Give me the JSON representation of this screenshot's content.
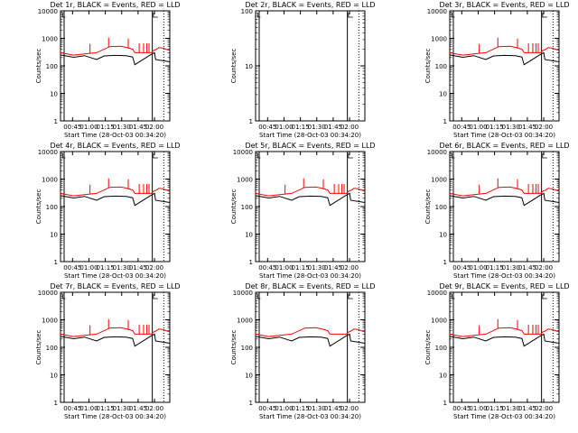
{
  "figure": {
    "title_template": "Det {det}, BLACK = Events, RED = LLD",
    "ylabel": "Counts/sec",
    "xlabel": "Start Time (28-Oct-03 00:34:20)",
    "x_ticks": [
      "00:45",
      "01:00",
      "01:15",
      "01:30",
      "01:45",
      "02:00"
    ],
    "y_ticks": [
      "1",
      "10",
      "100",
      "1000",
      "10000"
    ],
    "colors": {
      "events": "#000000",
      "lld": "#ff0000",
      "axes": "#000000"
    }
  },
  "chart_data": [
    {
      "type": "line",
      "panel": 1,
      "title": "Det 1r, BLACK = Events, RED = LLD",
      "xlabel": "Start Time (28-Oct-03 00:34:20)",
      "ylabel": "Counts/sec",
      "x_unit": "minutes since 00:34:20",
      "xlim": [
        0,
        100
      ],
      "ylim": [
        1,
        10000
      ],
      "yscale": "log",
      "has_data": true,
      "spikes": true,
      "series": [
        {
          "name": "Events",
          "color": "#000000",
          "x": [
            0,
            12,
            12,
            22,
            33,
            33,
            40,
            50,
            60,
            66,
            68,
            68,
            83,
            83,
            86,
            87,
            100
          ],
          "y": [
            250,
            205,
            205,
            235,
            170,
            170,
            230,
            240,
            235,
            210,
            110,
            110,
            260,
            260,
            300,
            170,
            140
          ]
        },
        {
          "name": "LLD",
          "color": "#ff0000",
          "x": [
            0,
            12,
            12,
            22,
            33,
            33,
            45,
            55,
            60,
            66,
            68,
            68,
            83,
            83,
            86,
            87,
            90,
            94,
            100
          ],
          "y": [
            300,
            245,
            245,
            270,
            300,
            300,
            500,
            520,
            470,
            400,
            300,
            300,
            300,
            300,
            380,
            380,
            460,
            440,
            360
          ]
        }
      ]
    },
    {
      "type": "line",
      "panel": 2,
      "title": "Det 2r, BLACK = Events, RED = LLD",
      "xlabel": "Start Time (28-Oct-03 00:34:20)",
      "ylabel": "Counts/sec",
      "x_unit": "minutes since 00:34:20",
      "xlim": [
        0,
        100
      ],
      "ylim": [
        1,
        100
      ],
      "yscale": "log",
      "has_data": false,
      "spikes": false,
      "series": []
    },
    {
      "type": "line",
      "panel": 3,
      "title": "Det 3r, BLACK = Events, RED = LLD",
      "xlabel": "Start Time (28-Oct-03 00:34:20)",
      "ylabel": "Counts/sec",
      "x_unit": "minutes since 00:34:20",
      "xlim": [
        0,
        100
      ],
      "ylim": [
        1,
        10000
      ],
      "yscale": "log",
      "has_data": true,
      "spikes": true,
      "series": [
        {
          "name": "Events",
          "color": "#000000",
          "x": [
            0,
            12,
            12,
            22,
            33,
            33,
            40,
            50,
            60,
            66,
            68,
            68,
            83,
            83,
            86,
            87,
            100
          ],
          "y": [
            250,
            205,
            205,
            235,
            170,
            170,
            230,
            240,
            235,
            210,
            110,
            110,
            260,
            260,
            300,
            170,
            140
          ]
        },
        {
          "name": "LLD",
          "color": "#ff0000",
          "x": [
            0,
            12,
            12,
            22,
            33,
            33,
            45,
            55,
            60,
            66,
            68,
            68,
            83,
            83,
            86,
            87,
            90,
            94,
            100
          ],
          "y": [
            300,
            245,
            245,
            270,
            300,
            300,
            500,
            520,
            470,
            400,
            300,
            300,
            300,
            300,
            380,
            380,
            460,
            440,
            360
          ]
        }
      ]
    },
    {
      "type": "line",
      "panel": 4,
      "title": "Det 4r, BLACK = Events, RED = LLD",
      "xlabel": "Start Time (28-Oct-03 00:34:20)",
      "ylabel": "Counts/sec",
      "x_unit": "minutes since 00:34:20",
      "xlim": [
        0,
        100
      ],
      "ylim": [
        1,
        10000
      ],
      "yscale": "log",
      "has_data": true,
      "spikes": true,
      "series": [
        {
          "name": "Events",
          "color": "#000000",
          "x": [
            0,
            12,
            12,
            22,
            33,
            33,
            40,
            50,
            60,
            66,
            68,
            68,
            83,
            83,
            86,
            87,
            100
          ],
          "y": [
            250,
            205,
            205,
            235,
            170,
            170,
            230,
            240,
            235,
            210,
            110,
            110,
            260,
            260,
            300,
            170,
            140
          ]
        },
        {
          "name": "LLD",
          "color": "#ff0000",
          "x": [
            0,
            12,
            12,
            22,
            33,
            33,
            45,
            55,
            60,
            66,
            68,
            68,
            83,
            83,
            86,
            87,
            90,
            94,
            100
          ],
          "y": [
            300,
            245,
            245,
            270,
            300,
            300,
            500,
            520,
            470,
            400,
            300,
            300,
            300,
            300,
            380,
            380,
            460,
            440,
            360
          ]
        }
      ]
    },
    {
      "type": "line",
      "panel": 5,
      "title": "Det 5r, BLACK = Events, RED = LLD",
      "xlabel": "Start Time (28-Oct-03 00:34:20)",
      "ylabel": "Counts/sec",
      "x_unit": "minutes since 00:34:20",
      "xlim": [
        0,
        100
      ],
      "ylim": [
        1,
        10000
      ],
      "yscale": "log",
      "has_data": true,
      "spikes": true,
      "series": [
        {
          "name": "Events",
          "color": "#000000",
          "x": [
            0,
            12,
            12,
            22,
            33,
            33,
            40,
            50,
            60,
            66,
            68,
            68,
            83,
            83,
            86,
            87,
            100
          ],
          "y": [
            250,
            205,
            205,
            235,
            170,
            170,
            230,
            240,
            235,
            210,
            110,
            110,
            260,
            260,
            300,
            170,
            140
          ]
        },
        {
          "name": "LLD",
          "color": "#ff0000",
          "x": [
            0,
            12,
            12,
            22,
            33,
            33,
            45,
            55,
            60,
            66,
            68,
            68,
            83,
            83,
            86,
            87,
            90,
            94,
            100
          ],
          "y": [
            300,
            245,
            245,
            270,
            300,
            300,
            500,
            520,
            470,
            400,
            300,
            300,
            300,
            300,
            380,
            380,
            460,
            440,
            360
          ]
        }
      ]
    },
    {
      "type": "line",
      "panel": 6,
      "title": "Det 6r, BLACK = Events, RED = LLD",
      "xlabel": "Start Time (28-Oct-03 00:34:20)",
      "ylabel": "Counts/sec",
      "x_unit": "minutes since 00:34:20",
      "xlim": [
        0,
        100
      ],
      "ylim": [
        1,
        10000
      ],
      "yscale": "log",
      "has_data": true,
      "spikes": true,
      "series": [
        {
          "name": "Events",
          "color": "#000000",
          "x": [
            0,
            12,
            12,
            22,
            33,
            33,
            40,
            50,
            60,
            66,
            68,
            68,
            83,
            83,
            86,
            87,
            100
          ],
          "y": [
            250,
            205,
            205,
            235,
            170,
            170,
            230,
            240,
            235,
            210,
            110,
            110,
            260,
            260,
            300,
            170,
            140
          ]
        },
        {
          "name": "LLD",
          "color": "#ff0000",
          "x": [
            0,
            12,
            12,
            22,
            33,
            33,
            45,
            55,
            60,
            66,
            68,
            68,
            83,
            83,
            86,
            87,
            90,
            94,
            100
          ],
          "y": [
            300,
            245,
            245,
            270,
            300,
            300,
            500,
            520,
            470,
            400,
            300,
            300,
            300,
            300,
            380,
            380,
            460,
            440,
            360
          ]
        }
      ]
    },
    {
      "type": "line",
      "panel": 7,
      "title": "Det 7r, BLACK = Events, RED = LLD",
      "xlabel": "Start Time (28-Oct-03 00:34:20)",
      "ylabel": "Counts/sec",
      "x_unit": "minutes since 00:34:20",
      "xlim": [
        0,
        100
      ],
      "ylim": [
        1,
        10000
      ],
      "yscale": "log",
      "has_data": true,
      "spikes": true,
      "series": [
        {
          "name": "Events",
          "color": "#000000",
          "x": [
            0,
            12,
            12,
            22,
            33,
            33,
            40,
            50,
            60,
            66,
            68,
            68,
            83,
            83,
            86,
            87,
            100
          ],
          "y": [
            250,
            205,
            205,
            235,
            170,
            170,
            230,
            240,
            235,
            210,
            110,
            110,
            260,
            260,
            300,
            170,
            140
          ]
        },
        {
          "name": "LLD",
          "color": "#ff0000",
          "x": [
            0,
            12,
            12,
            22,
            33,
            33,
            45,
            55,
            60,
            66,
            68,
            68,
            83,
            83,
            86,
            87,
            90,
            94,
            100
          ],
          "y": [
            300,
            245,
            245,
            270,
            300,
            300,
            500,
            520,
            470,
            400,
            300,
            300,
            300,
            300,
            380,
            380,
            460,
            440,
            360
          ]
        }
      ]
    },
    {
      "type": "line",
      "panel": 8,
      "title": "Det 8r, BLACK = Events, RED = LLD",
      "xlabel": "Start Time (28-Oct-03 00:34:20)",
      "ylabel": "Counts/sec",
      "x_unit": "minutes since 00:34:20",
      "xlim": [
        0,
        100
      ],
      "ylim": [
        1,
        10000
      ],
      "yscale": "log",
      "has_data": true,
      "spikes": false,
      "series": [
        {
          "name": "Events",
          "color": "#000000",
          "x": [
            0,
            12,
            12,
            22,
            33,
            33,
            40,
            50,
            60,
            66,
            68,
            68,
            83,
            83,
            86,
            87,
            100
          ],
          "y": [
            250,
            205,
            205,
            235,
            170,
            170,
            230,
            240,
            235,
            210,
            110,
            110,
            260,
            260,
            300,
            170,
            140
          ]
        },
        {
          "name": "LLD",
          "color": "#ff0000",
          "x": [
            0,
            12,
            12,
            22,
            33,
            33,
            45,
            55,
            60,
            66,
            68,
            68,
            83,
            83,
            86,
            87,
            90,
            94,
            100
          ],
          "y": [
            300,
            245,
            245,
            270,
            300,
            300,
            500,
            520,
            470,
            400,
            300,
            300,
            300,
            300,
            380,
            380,
            460,
            440,
            360
          ]
        }
      ]
    },
    {
      "type": "line",
      "panel": 9,
      "title": "Det 9r, BLACK = Events, RED = LLD",
      "xlabel": "Start Time (28-Oct-03 00:34:20)",
      "ylabel": "Counts/sec",
      "x_unit": "minutes since 00:34:20",
      "xlim": [
        0,
        100
      ],
      "ylim": [
        1,
        10000
      ],
      "yscale": "log",
      "has_data": true,
      "spikes": true,
      "series": [
        {
          "name": "Events",
          "color": "#000000",
          "x": [
            0,
            12,
            12,
            22,
            33,
            33,
            40,
            50,
            60,
            66,
            68,
            68,
            83,
            83,
            86,
            87,
            100
          ],
          "y": [
            250,
            205,
            205,
            235,
            170,
            170,
            230,
            240,
            235,
            210,
            110,
            110,
            260,
            260,
            300,
            170,
            140
          ]
        },
        {
          "name": "LLD",
          "color": "#ff0000",
          "x": [
            0,
            12,
            12,
            22,
            33,
            33,
            45,
            55,
            60,
            66,
            68,
            68,
            83,
            83,
            86,
            87,
            90,
            94,
            100
          ],
          "y": [
            300,
            245,
            245,
            270,
            300,
            300,
            500,
            520,
            470,
            400,
            300,
            300,
            300,
            300,
            380,
            380,
            460,
            440,
            360
          ]
        }
      ]
    }
  ]
}
